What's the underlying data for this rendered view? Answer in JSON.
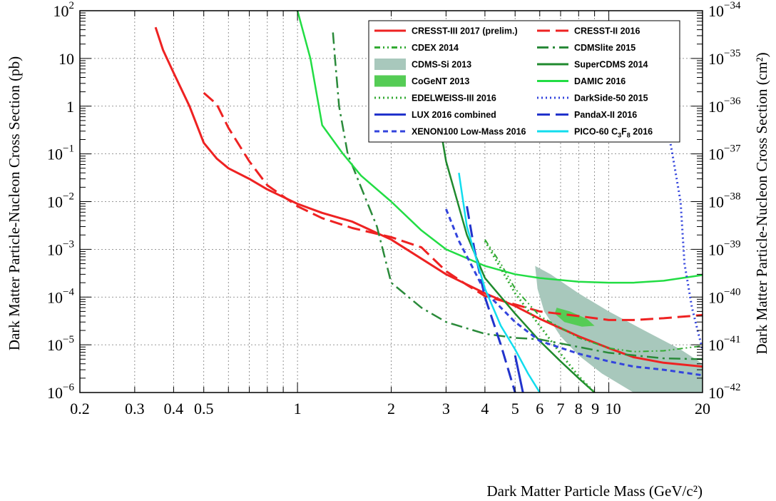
{
  "chart_data": {
    "type": "line",
    "title": "",
    "xlabel": "Dark Matter Particle Mass (GeV/c²)",
    "ylabel_left": "Dark Matter Particle-Nucleon Cross Section (pb)",
    "ylabel_right": "Dark Matter Particle-Nucleon Cross Section (cm²)",
    "x_scale": "log",
    "y_scale": "log",
    "xlim": [
      0.2,
      20
    ],
    "ylim": [
      1e-06,
      100
    ],
    "y2lim": [
      1e-42,
      1e-34
    ],
    "grid": true,
    "legend_position": "top-right",
    "x_tick_labels": [
      {
        "value": 0.2,
        "label": "0.2"
      },
      {
        "value": 0.3,
        "label": "0.3"
      },
      {
        "value": 0.4,
        "label": "0.4"
      },
      {
        "value": 0.5,
        "label": "0.5"
      },
      {
        "value": 1,
        "label": "1"
      },
      {
        "value": 2,
        "label": "2"
      },
      {
        "value": 3,
        "label": "3"
      },
      {
        "value": 4,
        "label": "4"
      },
      {
        "value": 5,
        "label": "5"
      },
      {
        "value": 6,
        "label": "6"
      },
      {
        "value": 7,
        "label": "7"
      },
      {
        "value": 8,
        "label": "8"
      },
      {
        "value": 9,
        "label": "9"
      },
      {
        "value": 10,
        "label": "10"
      },
      {
        "value": 20,
        "label": "20"
      }
    ],
    "y_tick_labels": [
      {
        "value": 100,
        "base": "10",
        "exp": "2"
      },
      {
        "value": 10,
        "base": "10",
        "exp": ""
      },
      {
        "value": 1,
        "base": "1",
        "exp": ""
      },
      {
        "value": 0.1,
        "base": "10",
        "exp": "−1"
      },
      {
        "value": 0.01,
        "base": "10",
        "exp": "−2"
      },
      {
        "value": 0.001,
        "base": "10",
        "exp": "−3"
      },
      {
        "value": 0.0001,
        "base": "10",
        "exp": "−4"
      },
      {
        "value": 1e-05,
        "base": "10",
        "exp": "−5"
      },
      {
        "value": 1e-06,
        "base": "10",
        "exp": "−6"
      }
    ],
    "y2_tick_labels": [
      {
        "value": 100,
        "exp": "−34"
      },
      {
        "value": 10,
        "exp": "−35"
      },
      {
        "value": 1,
        "exp": "−36"
      },
      {
        "value": 0.1,
        "exp": "−37"
      },
      {
        "value": 0.01,
        "exp": "−38"
      },
      {
        "value": 0.001,
        "exp": "−39"
      },
      {
        "value": 0.0001,
        "exp": "−40"
      },
      {
        "value": 1e-05,
        "exp": "−41"
      },
      {
        "value": 1e-06,
        "exp": "−42"
      }
    ],
    "series": [
      {
        "name": "CRESST-III 2017 (prelim.)",
        "color": "#ee2222",
        "dash": "solid",
        "width": 3,
        "points": [
          [
            0.35,
            45
          ],
          [
            0.37,
            15
          ],
          [
            0.4,
            5
          ],
          [
            0.45,
            1
          ],
          [
            0.5,
            0.17
          ],
          [
            0.55,
            0.08
          ],
          [
            0.6,
            0.05
          ],
          [
            0.7,
            0.03
          ],
          [
            0.8,
            0.018
          ],
          [
            1.0,
            0.009
          ],
          [
            1.2,
            0.0058
          ],
          [
            1.5,
            0.0038
          ],
          [
            2.0,
            0.0016
          ],
          [
            3.0,
            0.0003
          ],
          [
            4.0,
            0.00012
          ],
          [
            5.0,
            6.5e-05
          ],
          [
            6.0,
            3.5e-05
          ],
          [
            8.0,
            1.5e-05
          ],
          [
            10.0,
            8.5e-06
          ],
          [
            12.0,
            5.5e-06
          ],
          [
            15.0,
            4.2e-06
          ],
          [
            20.0,
            3.5e-06
          ]
        ]
      },
      {
        "name": "CRESST-II 2016",
        "color": "#ee2222",
        "dash": "long-dash",
        "width": 3,
        "points": [
          [
            0.5,
            1.9
          ],
          [
            0.55,
            1.1
          ],
          [
            0.6,
            0.35
          ],
          [
            0.7,
            0.07
          ],
          [
            0.8,
            0.022
          ],
          [
            1.0,
            0.008
          ],
          [
            1.2,
            0.0045
          ],
          [
            1.5,
            0.0028
          ],
          [
            2.0,
            0.0018
          ],
          [
            2.5,
            0.0011
          ],
          [
            3.0,
            0.00035
          ],
          [
            3.5,
            0.00018
          ],
          [
            4.0,
            0.000105
          ],
          [
            5.0,
            7e-05
          ],
          [
            6.0,
            5e-05
          ],
          [
            8.0,
            4e-05
          ],
          [
            10.0,
            3.3e-05
          ],
          [
            12.0,
            3.3e-05
          ],
          [
            15.0,
            3.6e-05
          ],
          [
            20.0,
            4.2e-05
          ]
        ]
      },
      {
        "name": "CDEX 2014",
        "color": "#33aa33",
        "dash": "dash-dot-dot",
        "width": 2,
        "points": [
          [
            4.0,
            0.0016
          ],
          [
            4.5,
            0.0005
          ],
          [
            5.0,
            0.00015
          ],
          [
            6.0,
            4e-05
          ],
          [
            8.0,
            1.4e-05
          ],
          [
            10.0,
            8.5e-06
          ],
          [
            12.0,
            7.2e-06
          ],
          [
            15.0,
            7.5e-06
          ],
          [
            20.0,
            9.5e-06
          ]
        ]
      },
      {
        "name": "CDMSlite 2015",
        "color": "#2a8a3a",
        "dash": "dash-dot",
        "width": 2.5,
        "points": [
          [
            1.3,
            35
          ],
          [
            1.32,
            10
          ],
          [
            1.36,
            1
          ],
          [
            1.45,
            0.1
          ],
          [
            1.6,
            0.02
          ],
          [
            1.8,
            0.003
          ],
          [
            2.0,
            0.0002
          ],
          [
            2.2,
            0.00012
          ],
          [
            2.5,
            6e-05
          ],
          [
            3.0,
            3e-05
          ],
          [
            4.0,
            1.7e-05
          ],
          [
            5.0,
            1.4e-05
          ],
          [
            6.0,
            1.3e-05
          ],
          [
            8.0,
            9e-06
          ],
          [
            10.0,
            6.8e-06
          ],
          [
            15.0,
            5.2e-06
          ],
          [
            20.0,
            5e-06
          ]
        ]
      },
      {
        "name": "SuperCDMS 2014",
        "color": "#1f8a2e",
        "dash": "solid",
        "width": 2.5,
        "points": [
          [
            2.8,
            1
          ],
          [
            3.0,
            0.07
          ],
          [
            3.5,
            0.002
          ],
          [
            4.0,
            0.00025
          ],
          [
            5.0,
            4.5e-05
          ],
          [
            6.0,
            1.2e-05
          ],
          [
            7.0,
            4.5e-06
          ],
          [
            8.0,
            2e-06
          ],
          [
            9.0,
            1e-06
          ]
        ]
      },
      {
        "name": "DAMIC 2016",
        "color": "#22dd44",
        "dash": "solid",
        "width": 2.5,
        "points": [
          [
            1.0,
            100
          ],
          [
            1.1,
            10
          ],
          [
            1.2,
            0.4
          ],
          [
            1.4,
            0.1
          ],
          [
            1.6,
            0.035
          ],
          [
            2.0,
            0.01
          ],
          [
            2.5,
            0.0025
          ],
          [
            3.0,
            0.001
          ],
          [
            4.0,
            0.00045
          ],
          [
            5.0,
            0.0003
          ],
          [
            6.0,
            0.00025
          ],
          [
            8.0,
            0.00021
          ],
          [
            10.0,
            0.0002
          ],
          [
            12.0,
            0.0002
          ],
          [
            15.0,
            0.00022
          ],
          [
            20.0,
            0.00029
          ]
        ]
      },
      {
        "name": "EDELWEISS-III 2016",
        "color": "#33aa33",
        "dash": "dotted",
        "width": 3,
        "points": [
          [
            4.0,
            0.0015
          ],
          [
            4.5,
            0.0004
          ],
          [
            5.0,
            0.00012
          ],
          [
            6.0,
            2.5e-05
          ],
          [
            7.0,
            6.5e-06
          ],
          [
            8.0,
            2.2e-06
          ],
          [
            9.0,
            1e-06
          ]
        ]
      },
      {
        "name": "DarkSide-50 2015",
        "color": "#3344dd",
        "dash": "dotted",
        "width": 3,
        "points": [
          [
            15.0,
            1
          ],
          [
            16.0,
            0.1
          ],
          [
            17.0,
            0.01
          ],
          [
            17.5,
            0.0005
          ],
          [
            18.5,
            6e-05
          ],
          [
            19.5,
            1.5e-05
          ],
          [
            20.0,
            8e-06
          ]
        ]
      },
      {
        "name": "LUX 2016 combined",
        "color": "#2233cc",
        "dash": "solid",
        "width": 3,
        "points": [
          [
            5.0,
            6e-06
          ],
          [
            5.3,
            1e-06
          ]
        ]
      },
      {
        "name": "PandaX-II 2016",
        "color": "#2233cc",
        "dash": "long-dash",
        "width": 3,
        "points": [
          [
            3.5,
            0.008
          ],
          [
            3.7,
            0.001
          ],
          [
            4.0,
            0.0001
          ],
          [
            4.5,
            1e-05
          ],
          [
            5.0,
            1e-06
          ]
        ]
      },
      {
        "name": "XENON100 Low-Mass 2016",
        "color": "#3344dd",
        "dash": "dashed",
        "width": 3,
        "points": [
          [
            3.0,
            0.007
          ],
          [
            3.3,
            0.0015
          ],
          [
            3.6,
            0.0005
          ],
          [
            4.0,
            0.00013
          ],
          [
            5.0,
            3e-05
          ],
          [
            6.0,
            1.2e-05
          ],
          [
            8.0,
            6.5e-06
          ],
          [
            10.0,
            4.5e-06
          ],
          [
            12.0,
            3.5e-06
          ],
          [
            15.0,
            3e-06
          ],
          [
            20.0,
            2.3e-06
          ]
        ]
      },
      {
        "name": "PICO-60 C3F8 2016",
        "color": "#11ddee",
        "dash": "solid",
        "width": 2.5,
        "points": [
          [
            3.3,
            0.04
          ],
          [
            3.5,
            0.003
          ],
          [
            4.0,
            0.00015
          ],
          [
            4.5,
            2.5e-05
          ],
          [
            5.0,
            8e-06
          ],
          [
            5.5,
            2.5e-06
          ],
          [
            6.0,
            1e-06
          ]
        ]
      }
    ],
    "regions": [
      {
        "name": "CDMS-Si 2013",
        "color": "#a8c8bc",
        "points": [
          [
            5.8,
            0.00045
          ],
          [
            6.5,
            0.0003
          ],
          [
            8.0,
            0.00012
          ],
          [
            10.0,
            5e-05
          ],
          [
            13.0,
            2e-05
          ],
          [
            17.0,
            8e-06
          ],
          [
            20.0,
            4e-06
          ],
          [
            20.0,
            1e-06
          ],
          [
            12.0,
            1e-06
          ],
          [
            9.5,
            2.5e-06
          ],
          [
            8.0,
            6e-06
          ],
          [
            7.0,
            1.5e-05
          ],
          [
            6.2,
            5e-05
          ],
          [
            5.9,
            0.00015
          ]
        ]
      },
      {
        "name": "CoGeNT 2013",
        "color": "#55cc55",
        "points": [
          [
            6.8,
            6e-05
          ],
          [
            7.5,
            5e-05
          ],
          [
            8.5,
            3.5e-05
          ],
          [
            9.0,
            2.5e-05
          ],
          [
            8.2,
            2.4e-05
          ],
          [
            7.2,
            3e-05
          ],
          [
            6.7,
            4.5e-05
          ]
        ]
      }
    ],
    "legend": [
      {
        "label": "CRESST-III 2017 (prelim.)",
        "type": "line",
        "color": "#ee2222",
        "dash": "solid"
      },
      {
        "label": "CRESST-II 2016",
        "type": "line",
        "color": "#ee2222",
        "dash": "long-dash"
      },
      {
        "label": "CDEX 2014",
        "type": "line",
        "color": "#33aa33",
        "dash": "dash-dot-dot"
      },
      {
        "label": "CDMSlite 2015",
        "type": "line",
        "color": "#2a8a3a",
        "dash": "dash-dot"
      },
      {
        "label": "CDMS-Si 2013",
        "type": "box",
        "color": "#a8c8bc"
      },
      {
        "label": "SuperCDMS 2014",
        "type": "line",
        "color": "#1f8a2e",
        "dash": "solid"
      },
      {
        "label": "CoGeNT 2013",
        "type": "box",
        "color": "#55cc55"
      },
      {
        "label": "DAMIC 2016",
        "type": "line",
        "color": "#22dd44",
        "dash": "solid"
      },
      {
        "label": "EDELWEISS-III 2016",
        "type": "line",
        "color": "#33aa33",
        "dash": "dotted"
      },
      {
        "label": "DarkSide-50 2015",
        "type": "line",
        "color": "#3344dd",
        "dash": "dotted"
      },
      {
        "label": "LUX 2016 combined",
        "type": "line",
        "color": "#2233cc",
        "dash": "solid"
      },
      {
        "label": "PandaX-II 2016",
        "type": "line",
        "color": "#2233cc",
        "dash": "long-dash"
      },
      {
        "label": "XENON100 Low-Mass 2016",
        "type": "line",
        "color": "#3344dd",
        "dash": "dashed"
      },
      {
        "label": "PICO-60 C3F8 2016",
        "type": "line",
        "color": "#11ddee",
        "dash": "solid",
        "rich_label": [
          "PICO-60 C",
          "3",
          "F",
          "8",
          " 2016"
        ]
      }
    ]
  }
}
